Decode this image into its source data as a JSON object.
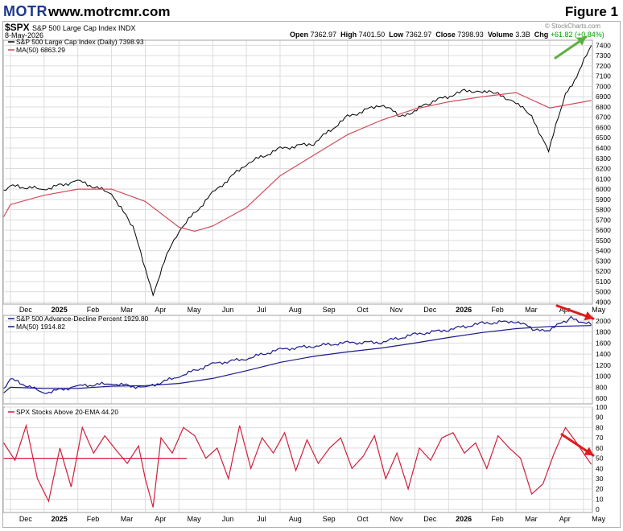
{
  "header": {
    "logo_text": "MOTR",
    "website": "www.motrcmr.com",
    "figure_label": "Figure 1"
  },
  "chart_header": {
    "symbol": "$SPX",
    "symbol_name": "S&P 500 Large Cap Index INDX",
    "date": "8-May-2026",
    "open_label": "Open",
    "open": "7362.97",
    "high_label": "High",
    "high": "7401.50",
    "low_label": "Low",
    "low": "7362.97",
    "close_label": "Close",
    "close": "7398.93",
    "volume_label": "Volume",
    "volume": "3.3B",
    "chg_label": "Chg",
    "chg": "+61.82 (+0.84%)",
    "watermark": "© StockCharts.com"
  },
  "colors": {
    "price": "#000000",
    "ma_red": "#d04a5a",
    "ad_blue": "#1a1a8c",
    "stocks_red": "#d01e3c",
    "arrow_green": "#5cb040",
    "arrow_red": "#e01a1a",
    "grid": "#dcdcdc"
  },
  "chart_data": [
    {
      "type": "line",
      "panel": "price",
      "series": [
        {
          "name": "S&P 500 Large Cap Index (Daily) 7398.93",
          "x": [
            "Nov 25",
            "Dec",
            "Jan",
            "Feb",
            "Mar",
            "Mar 20",
            "Apr 8",
            "Apr 20",
            "May",
            "Jun",
            "Jul",
            "Aug",
            "Sep",
            "Oct",
            "Nov",
            "Nov 20",
            "Dec 15",
            "Jan 15",
            "Feb",
            "Feb 15",
            "Mar",
            "Mar 15",
            "Mar 30",
            "Apr 15",
            "Apr 25",
            "May 8"
          ],
          "values": [
            5990,
            6030,
            6000,
            6080,
            5960,
            5630,
            4980,
            5350,
            5600,
            5960,
            6250,
            6390,
            6450,
            6700,
            6830,
            6700,
            6850,
            6950,
            6960,
            6920,
            6850,
            6700,
            6380,
            6920,
            7100,
            7399
          ]
        },
        {
          "name": "MA(50) 6863.29",
          "x": [
            "Nov 25",
            "Dec",
            "Jan",
            "Feb",
            "Mar",
            "Apr",
            "May",
            "May 15",
            "Jun",
            "Jul",
            "Aug",
            "Sep",
            "Oct",
            "Nov",
            "Dec",
            "Jan",
            "Feb",
            "Mar",
            "Apr",
            "May 8"
          ],
          "values": [
            5730,
            5850,
            5940,
            6000,
            6000,
            5880,
            5630,
            5590,
            5640,
            5820,
            6130,
            6330,
            6530,
            6670,
            6780,
            6850,
            6900,
            6940,
            6790,
            6863
          ]
        }
      ],
      "yticks": [
        4900,
        5000,
        5100,
        5200,
        5300,
        5400,
        5500,
        5600,
        5700,
        5800,
        5900,
        6000,
        6100,
        6200,
        6300,
        6400,
        6500,
        6600,
        6700,
        6800,
        6900,
        7000,
        7100,
        7200,
        7300,
        7400
      ],
      "ylim": [
        4880,
        7450
      ]
    },
    {
      "type": "line",
      "panel": "advance-decline",
      "series": [
        {
          "name": "S&P 500 Advance-Decline Percent 1929.80",
          "x": [
            "Nov 25",
            "Dec",
            "Jan",
            "Feb",
            "Mar",
            "Apr",
            "May",
            "Jun",
            "Jul",
            "Aug",
            "Sep",
            "Oct",
            "Nov",
            "Dec",
            "Jan",
            "Feb",
            "Mar",
            "Mar 20",
            "Apr",
            "Apr 20",
            "May 8"
          ],
          "values": [
            780,
            950,
            700,
            820,
            870,
            790,
            1000,
            1220,
            1320,
            1480,
            1550,
            1600,
            1620,
            1750,
            1850,
            1950,
            2000,
            1820,
            1850,
            2050,
            1930
          ]
        },
        {
          "name": "MA(50) 1914.82",
          "x": [
            "Nov 25",
            "Dec",
            "Jan",
            "Feb",
            "Mar",
            "Apr",
            "May",
            "Jun",
            "Jul",
            "Aug",
            "Sep",
            "Oct",
            "Nov",
            "Dec",
            "Jan",
            "Feb",
            "Mar",
            "Apr",
            "May 8"
          ],
          "values": [
            700,
            800,
            780,
            780,
            820,
            830,
            870,
            960,
            1100,
            1250,
            1360,
            1440,
            1510,
            1600,
            1700,
            1790,
            1860,
            1900,
            1915
          ]
        }
      ],
      "yticks": [
        600,
        800,
        1000,
        1200,
        1400,
        1600,
        1800,
        2000
      ],
      "ylim": [
        500,
        2100
      ]
    },
    {
      "type": "line",
      "panel": "stocks-above-ema",
      "series": [
        {
          "name": "SPX Stocks Above 20-EMA 44.20",
          "x": [
            "Nov 25",
            "Dec 5",
            "Dec 15",
            "Dec 25",
            "Jan 5",
            "Jan 15",
            "Jan 25",
            "Feb 5",
            "Feb 15",
            "Feb 25",
            "Mar 5",
            "Mar 15",
            "Mar 25",
            "Apr 1",
            "Apr 8",
            "Apr 15",
            "Apr 25",
            "May 5",
            "May 15",
            "May 25",
            "Jun 5",
            "Jun 15",
            "Jun 25",
            "Jul 5",
            "Jul 15",
            "Jul 25",
            "Aug 5",
            "Aug 15",
            "Aug 25",
            "Sep 5",
            "Sep 15",
            "Sep 25",
            "Oct 5",
            "Oct 15",
            "Oct 25",
            "Nov 5",
            "Nov 15",
            "Nov 25",
            "Dec 5",
            "Dec 15",
            "Dec 25",
            "Jan 5",
            "Jan 15",
            "Jan 25",
            "Feb 5",
            "Feb 15",
            "Feb 25",
            "Mar 5",
            "Mar 15",
            "Mar 25",
            "Apr 5",
            "Apr 15",
            "Apr 25",
            "May 1",
            "May 8"
          ],
          "values": [
            65,
            48,
            82,
            30,
            8,
            60,
            22,
            80,
            55,
            72,
            58,
            45,
            62,
            30,
            2,
            70,
            55,
            80,
            72,
            50,
            60,
            30,
            82,
            40,
            70,
            55,
            75,
            38,
            68,
            45,
            60,
            70,
            40,
            52,
            72,
            30,
            55,
            20,
            60,
            48,
            70,
            75,
            55,
            65,
            40,
            72,
            60,
            50,
            15,
            25,
            55,
            80,
            65,
            55,
            44
          ]
        },
        {
          "name": "level 50",
          "x": [
            "Nov 25",
            "May 8"
          ],
          "values": [
            50,
            50
          ]
        }
      ],
      "yticks": [
        0,
        10,
        20,
        30,
        40,
        50,
        60,
        70,
        80,
        90,
        100
      ],
      "ylim": [
        -3,
        100
      ]
    }
  ],
  "x_axis_labels": [
    "Dec",
    "2025",
    "Feb",
    "Mar",
    "Apr",
    "May",
    "Jun",
    "Jul",
    "Aug",
    "Sep",
    "Oct",
    "Nov",
    "Dec",
    "2026",
    "Feb",
    "Mar",
    "Apr",
    "May"
  ],
  "panel_legends": {
    "price_title": "S&P 500 Large Cap Index (Daily) 7398.93",
    "price_ma": "MA(50) 6863.29",
    "ad_title": "S&P 500 Advance-Decline Percent 1929.80",
    "ad_ma": "MA(50) 1914.82",
    "ema_title": "SPX Stocks Above 20-EMA 44.20"
  }
}
